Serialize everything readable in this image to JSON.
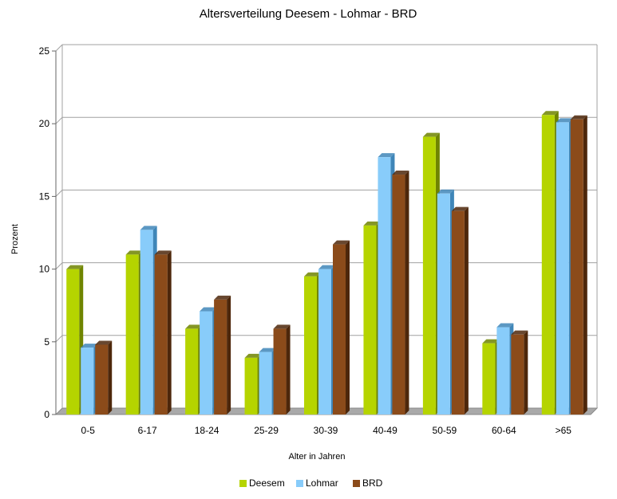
{
  "chart_data": {
    "type": "bar",
    "title": "Altersverteilung Deesem - Lohmar - BRD",
    "xlabel": "Alter in Jahren",
    "ylabel": "Prozent",
    "ylim": [
      0,
      25
    ],
    "yticks": [
      0,
      5,
      10,
      15,
      20,
      25
    ],
    "grid": true,
    "legend_position": "bottom",
    "categories": [
      "0-5",
      "6-17",
      "18-24",
      "25-29",
      "30-39",
      "40-49",
      "50-59",
      "60-64",
      ">65"
    ],
    "series": [
      {
        "name": "Deesem",
        "color": "#b5d400",
        "shade": "#6f8400",
        "values": [
          10.0,
          11.0,
          5.9,
          3.9,
          9.5,
          13.0,
          19.1,
          4.9,
          20.6
        ]
      },
      {
        "name": "Lohmar",
        "color": "#88ccfa",
        "shade": "#3f86b8",
        "values": [
          4.6,
          12.7,
          7.1,
          4.3,
          10.0,
          17.7,
          15.2,
          6.0,
          20.1
        ]
      },
      {
        "name": "BRD",
        "color": "#8b4b1a",
        "shade": "#4d270b",
        "values": [
          4.8,
          11.0,
          7.9,
          5.9,
          11.7,
          16.5,
          14.0,
          5.5,
          20.3
        ]
      }
    ]
  }
}
